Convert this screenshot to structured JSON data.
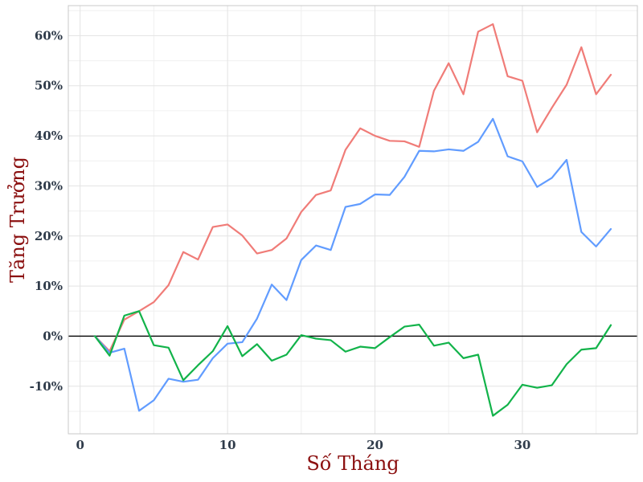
{
  "chart_data": {
    "type": "line",
    "title": "",
    "xlabel": "Số Tháng",
    "ylabel": "Tăng Trưởng",
    "xlim": [
      -0.8,
      37.8
    ],
    "ylim": [
      -0.195,
      0.66
    ],
    "x_ticks": [
      0,
      10,
      20,
      30
    ],
    "x_tick_labels": [
      "0",
      "10",
      "20",
      "30"
    ],
    "y_ticks": [
      -0.1,
      0,
      0.1,
      0.2,
      0.3,
      0.4,
      0.5,
      0.6
    ],
    "y_tick_labels": [
      "-10%",
      "0%",
      "10%",
      "20%",
      "30%",
      "40%",
      "50%",
      "60%"
    ],
    "grid": true,
    "legend": "none",
    "reference_line_y": 0,
    "x": [
      1,
      2,
      3,
      4,
      5,
      6,
      7,
      8,
      9,
      10,
      11,
      12,
      13,
      14,
      15,
      16,
      17,
      18,
      19,
      20,
      21,
      22,
      23,
      24,
      25,
      26,
      27,
      28,
      29,
      30,
      31,
      32,
      33,
      34,
      35,
      36
    ],
    "series": [
      {
        "color": "#f07c78",
        "values": [
          0.0,
          -0.03,
          0.033,
          0.05,
          0.068,
          0.102,
          0.168,
          0.153,
          0.218,
          0.223,
          0.201,
          0.165,
          0.172,
          0.195,
          0.248,
          0.282,
          0.291,
          0.372,
          0.415,
          0.4,
          0.39,
          0.389,
          0.378,
          0.49,
          0.545,
          0.483,
          0.608,
          0.623,
          0.519,
          0.51,
          0.407,
          0.456,
          0.502,
          0.577,
          0.483,
          0.522
        ]
      },
      {
        "color": "#619cff",
        "values": [
          0.0,
          -0.033,
          -0.025,
          -0.149,
          -0.128,
          -0.085,
          -0.091,
          -0.087,
          -0.044,
          -0.015,
          -0.012,
          0.035,
          0.103,
          0.072,
          0.152,
          0.181,
          0.172,
          0.258,
          0.264,
          0.283,
          0.282,
          0.318,
          0.37,
          0.369,
          0.373,
          0.37,
          0.388,
          0.434,
          0.359,
          0.349,
          0.298,
          0.316,
          0.352,
          0.208,
          0.179,
          0.214
        ]
      },
      {
        "color": "#12b34a",
        "values": [
          0.0,
          -0.039,
          0.041,
          0.05,
          -0.018,
          -0.023,
          -0.088,
          -0.058,
          -0.03,
          0.02,
          -0.04,
          -0.016,
          -0.049,
          -0.037,
          0.002,
          -0.005,
          -0.008,
          -0.031,
          -0.021,
          -0.024,
          -0.002,
          0.019,
          0.023,
          -0.019,
          -0.013,
          -0.044,
          -0.037,
          -0.159,
          -0.137,
          -0.097,
          -0.103,
          -0.098,
          -0.056,
          -0.027,
          -0.024,
          0.022
        ]
      }
    ]
  }
}
